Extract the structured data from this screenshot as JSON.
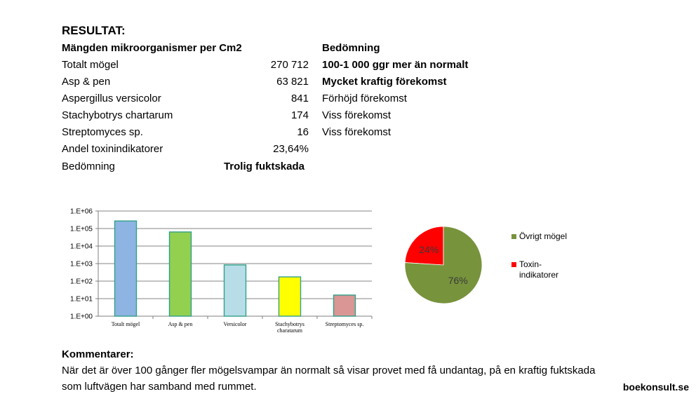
{
  "heading": "RESULTAT:",
  "table": {
    "header_left": "Mängden mikroorganismer per Cm2",
    "header_right": "Bedömning",
    "rows": [
      {
        "label": "Totalt mögel",
        "value": "270 712",
        "assessment": "100-1 000 ggr mer än normalt",
        "assessment_bold": true
      },
      {
        "label": "Asp & pen",
        "value": "63 821",
        "assessment": "Mycket kraftig förekomst",
        "assessment_bold": true
      },
      {
        "label": "Aspergillus versicolor",
        "value": "841",
        "assessment": "Förhöjd förekomst",
        "assessment_bold": false
      },
      {
        "label": "Stachybotrys chartarum",
        "value": "174",
        "assessment": "Viss förekomst",
        "assessment_bold": false
      },
      {
        "label": "Streptomyces sp.",
        "value": "16",
        "assessment": "Viss förekomst",
        "assessment_bold": false
      },
      {
        "label": "Andel toxinindikatorer",
        "value": "23,64%",
        "assessment": "",
        "assessment_bold": false
      }
    ],
    "verdict_label": "Bedömning",
    "verdict_value": "Trolig fuktskada"
  },
  "chart_data": [
    {
      "type": "bar",
      "y_scale": "log",
      "ylim": [
        1,
        1000000
      ],
      "y_tick_labels": [
        "1.E+00",
        "1.E+01",
        "1.E+02",
        "1.E+03",
        "1.E+04",
        "1.E+05",
        "1.E+06"
      ],
      "categories": [
        "Totalt mögel",
        "Asp & pen",
        "Versicolor",
        "Stachybotrys charatarum",
        "Streptomyces sp."
      ],
      "values": [
        270712,
        63821,
        841,
        174,
        16
      ],
      "colors": [
        "#8DB4E2",
        "#92D050",
        "#B7DEE8",
        "#FFFF00",
        "#D99694"
      ],
      "grid": true
    },
    {
      "type": "pie",
      "slices": [
        {
          "label": "Övrigt mögel",
          "value": 76,
          "display": "76%",
          "color": "#77933C"
        },
        {
          "label": "Toxin-indikatorer",
          "value": 24,
          "display": "24%",
          "color": "#FF0000"
        }
      ],
      "legend_position": "right"
    }
  ],
  "comments": {
    "title": "Kommentarer:",
    "line1": "När det är över 100 gånger fler mögelsvampar än normalt så visar provet med få undantag, på en kraftig fuktskada",
    "line2": "som luftvägen har samband med rummet."
  },
  "brand": "boekonsult.se"
}
